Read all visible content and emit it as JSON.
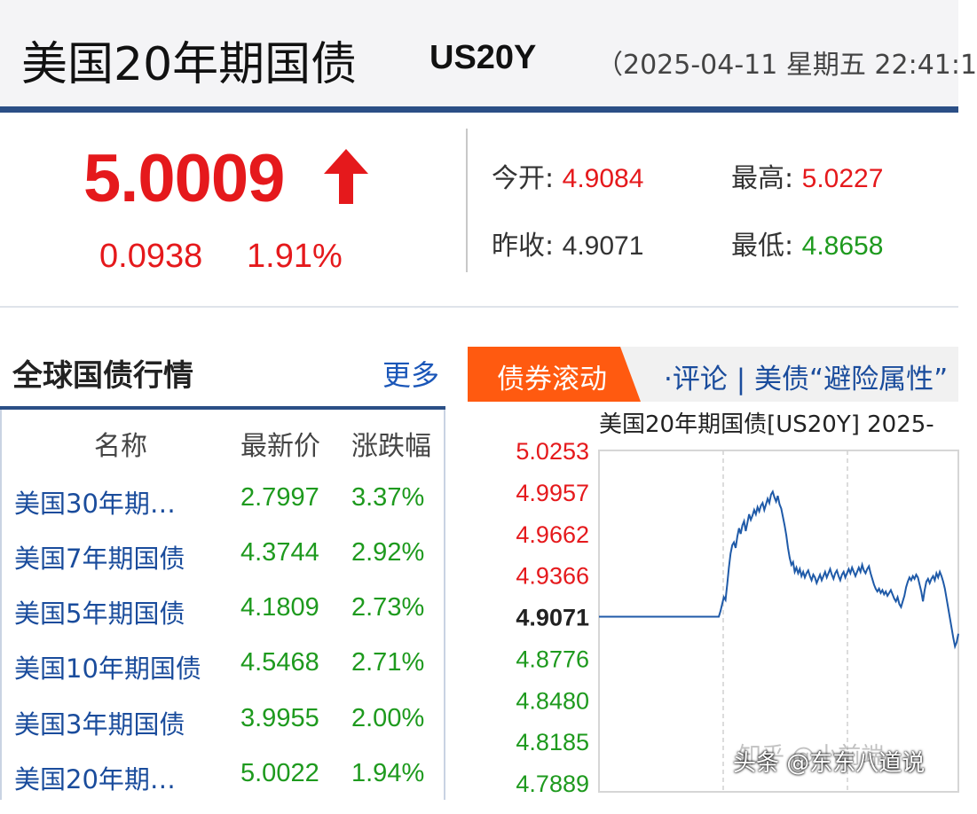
{
  "header": {
    "title": "美国20年期国债",
    "code": "US20Y",
    "datetime": "（2025-04-11 星期五 22:41:1"
  },
  "quote": {
    "price": "5.0009",
    "change": "0.0938",
    "change_pct": "1.91%",
    "direction": "up",
    "stats": {
      "open_label": "今开:",
      "open_value": "4.9084",
      "high_label": "最高:",
      "high_value": "5.0227",
      "prev_close_label": "昨收:",
      "prev_close_value": "4.9071",
      "low_label": "最低:",
      "low_value": "4.8658"
    }
  },
  "global_bonds": {
    "title": "全球国债行情",
    "more_label": "更多",
    "columns": [
      "名称",
      "最新价",
      "涨跌幅"
    ],
    "rows": [
      {
        "name": "美国30年期…",
        "last": "2.7997",
        "change": "3.37%"
      },
      {
        "name": "美国7年期国债",
        "last": "4.3744",
        "change": "2.92%"
      },
      {
        "name": "美国5年期国债",
        "last": "4.1809",
        "change": "2.73%"
      },
      {
        "name": "美国10年期国债",
        "last": "4.5468",
        "change": "2.71%"
      },
      {
        "name": "美国3年期国债",
        "last": "3.9955",
        "change": "2.00%"
      },
      {
        "name": "美国20年期…",
        "last": "5.0022",
        "change": "1.94%"
      }
    ]
  },
  "news": {
    "tab_label": "债券滚动",
    "ticker": "·评论 | 美债“避险属性”"
  },
  "chart_title": "美国20年期国债[US20Y] 2025-",
  "chart_data": {
    "type": "line",
    "title": "美国20年期国债[US20Y] 2025-",
    "yticks": [
      "5.0253",
      "4.9957",
      "4.9662",
      "4.9366",
      "4.9071",
      "4.8776",
      "4.8480",
      "4.8185",
      "4.7889"
    ],
    "ylim": [
      4.7889,
      5.0253
    ],
    "prev_close": 4.9071,
    "series": [
      {
        "values": [
          4.9071,
          4.9071,
          4.9071,
          4.9071,
          4.9071,
          4.9071,
          4.9071,
          4.9071,
          4.9071,
          4.9071,
          4.9071,
          4.9071,
          4.9071,
          4.9071,
          4.9071,
          4.9071,
          4.9071,
          4.9071,
          4.9071,
          4.9071,
          4.9071,
          4.9071,
          4.9071,
          4.9071,
          4.9071,
          4.9071,
          4.9071,
          4.9071,
          4.9071,
          4.9071,
          4.9071,
          4.9071,
          4.9071,
          4.9071,
          4.9071,
          4.9071,
          4.9071,
          4.9071,
          4.9071,
          4.9071,
          4.9071,
          4.9071,
          4.9071,
          4.9071,
          4.9071,
          4.9071,
          4.9071,
          4.9071,
          4.9071,
          4.9071,
          4.9071,
          4.9071,
          4.9071,
          4.9071,
          4.9071,
          4.9071,
          4.9071,
          4.9071,
          4.9071,
          4.9071,
          4.9071,
          4.9071,
          4.9071,
          4.9071,
          4.9071,
          4.9071,
          4.9071,
          4.9071,
          4.9071,
          4.9071,
          4.9071,
          4.9071,
          4.911,
          4.916,
          4.921,
          4.919,
          4.93,
          4.942,
          4.952,
          4.958,
          4.96,
          4.956,
          4.964,
          4.97,
          4.966,
          4.972,
          4.975,
          4.968,
          4.974,
          4.98,
          4.976,
          4.979,
          4.983,
          4.98,
          4.985,
          4.982,
          4.986,
          4.988,
          4.983,
          4.987,
          4.991,
          4.988,
          4.994,
          4.996,
          4.992,
          4.989,
          4.993,
          4.987,
          4.984,
          4.978,
          4.972,
          4.965,
          4.956,
          4.949,
          4.944,
          4.946,
          4.939,
          4.942,
          4.938,
          4.941,
          4.936,
          4.939,
          4.935,
          4.938,
          4.94,
          4.936,
          4.933,
          4.937,
          4.935,
          4.931,
          4.934,
          4.937,
          4.933,
          4.936,
          4.939,
          4.935,
          4.938,
          4.941,
          4.937,
          4.934,
          4.938,
          4.94,
          4.936,
          4.933,
          4.937,
          4.939,
          4.935,
          4.938,
          4.941,
          4.938,
          4.942,
          4.939,
          4.936,
          4.939,
          4.942,
          4.939,
          4.944,
          4.94,
          4.938,
          4.941,
          4.943,
          4.938,
          4.934,
          4.93,
          4.927,
          4.925,
          4.927,
          4.924,
          4.926,
          4.923,
          4.925,
          4.922,
          4.924,
          4.926,
          4.923,
          4.92,
          4.918,
          4.921,
          4.916,
          4.914,
          4.918,
          4.922,
          4.928,
          4.932,
          4.935,
          4.933,
          4.936,
          4.934,
          4.937,
          4.935,
          4.93,
          4.925,
          4.918,
          4.926,
          4.932,
          4.934,
          4.931,
          4.934,
          4.936,
          4.933,
          4.938,
          4.935,
          4.939,
          4.936,
          4.932,
          4.927,
          4.92,
          4.913,
          4.906,
          4.899,
          4.892,
          4.886,
          4.889,
          4.895
        ]
      }
    ]
  },
  "watermark": {
    "text": "头条 @东东八道说",
    "text2": "知乎 @小前端"
  },
  "colors": {
    "up": "#e5191c",
    "down": "#1e9a1e",
    "accent": "#2b4f86",
    "link": "#1a4c9c",
    "tab": "#ff5a10",
    "line": "#1f5aa8"
  }
}
